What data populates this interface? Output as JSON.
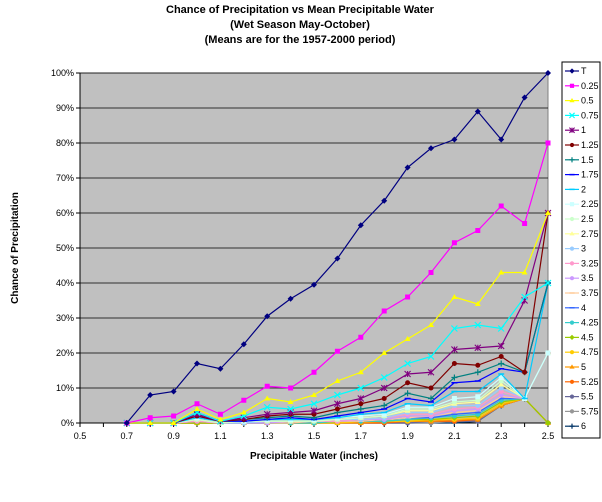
{
  "chart_data": {
    "type": "line",
    "title_lines": [
      "Chance of Precipitation vs Mean Precipitable Water",
      "(Wet Season May-October)",
      "(Means are for the 1957-2000 period)"
    ],
    "xlabel": "Precipitable Water (inches)",
    "ylabel": "Chance of Precipitation",
    "xlim": [
      0.5,
      2.5
    ],
    "ylim": [
      0,
      100
    ],
    "x_ticks": [
      "0.5",
      "0.7",
      "0.9",
      "1.1",
      "1.3",
      "1.5",
      "1.7",
      "1.9",
      "2.1",
      "2.3",
      "2.5"
    ],
    "y_ticks": [
      "0%",
      "10%",
      "20%",
      "30%",
      "40%",
      "50%",
      "60%",
      "70%",
      "80%",
      "90%",
      "100%"
    ],
    "grid": "horizontal",
    "plot_background": "#c0c0c0",
    "legend_position": "right",
    "x": [
      0.7,
      0.8,
      0.9,
      1.0,
      1.1,
      1.2,
      1.3,
      1.4,
      1.5,
      1.6,
      1.7,
      1.8,
      1.9,
      2.0,
      2.1,
      2.2,
      2.3,
      2.4,
      2.5
    ],
    "series": [
      {
        "name": "T",
        "color": "#000080",
        "marker": "diamond",
        "values": [
          0,
          8,
          9,
          17,
          15.5,
          22.5,
          30.5,
          35.5,
          39.5,
          47,
          56.5,
          63.5,
          73,
          78.5,
          81,
          89,
          81,
          93,
          100
        ]
      },
      {
        "name": "0.25",
        "color": "#ff00ff",
        "marker": "square",
        "values": [
          0,
          1.5,
          2,
          5.5,
          2.5,
          6.5,
          10.5,
          10,
          14.5,
          20.5,
          24.5,
          32,
          36,
          43,
          51.5,
          55,
          62,
          57,
          80
        ]
      },
      {
        "name": "0.5",
        "color": "#ffff00",
        "marker": "triangle",
        "values": [
          0,
          0,
          0,
          4,
          1,
          3,
          7,
          6,
          8,
          12,
          14.5,
          20,
          24,
          28,
          36,
          34,
          43,
          43,
          60
        ]
      },
      {
        "name": "0.75",
        "color": "#00ffff",
        "marker": "x",
        "values": [
          0,
          0,
          0,
          3,
          0.5,
          2,
          4.5,
          4,
          5.5,
          8,
          10,
          13,
          17,
          19,
          27,
          28,
          27,
          36,
          40
        ]
      },
      {
        "name": "1",
        "color": "#800080",
        "marker": "star",
        "values": [
          0,
          0,
          0,
          2.5,
          0.5,
          1.5,
          2.5,
          3,
          3.5,
          5.5,
          7,
          10,
          14,
          14.5,
          21,
          21.5,
          22,
          35,
          60
        ]
      },
      {
        "name": "1.25",
        "color": "#800000",
        "marker": "circle",
        "values": [
          0,
          0,
          0,
          2,
          0.5,
          1,
          2,
          2.5,
          2.5,
          4,
          5.5,
          7,
          11.5,
          10,
          17,
          16.5,
          19,
          14.5,
          60
        ]
      },
      {
        "name": "1.5",
        "color": "#008080",
        "marker": "plus",
        "values": [
          0,
          0,
          0,
          3,
          0.5,
          1,
          1.5,
          2,
          1.5,
          3,
          4,
          5,
          8.5,
          7,
          13,
          14.5,
          17,
          14.5,
          40
        ]
      },
      {
        "name": "1.75",
        "color": "#0000ff",
        "marker": "dash",
        "values": [
          0,
          0,
          0,
          2,
          0.5,
          0.5,
          1,
          1.5,
          1,
          2,
          3,
          4,
          7,
          6,
          11.5,
          12,
          15.5,
          14.5,
          40
        ]
      },
      {
        "name": "2",
        "color": "#00ccff",
        "marker": "dash",
        "values": [
          0,
          0,
          0,
          1.5,
          0.5,
          0.5,
          1,
          1,
          1,
          1.5,
          2.5,
          3,
          5.5,
          5,
          9,
          9,
          14,
          7,
          40
        ]
      },
      {
        "name": "2.25",
        "color": "#ccffff",
        "marker": "square",
        "values": [
          0,
          0,
          0,
          1.5,
          0.5,
          0.5,
          1,
          1,
          1,
          1.5,
          2,
          2.5,
          4.5,
          4.5,
          7,
          7.5,
          13,
          7,
          20
        ]
      },
      {
        "name": "2.5",
        "color": "#ccffcc",
        "marker": "circle",
        "values": [
          0,
          0,
          0,
          1,
          0,
          0.5,
          0.5,
          0.5,
          0.5,
          1,
          1.5,
          2,
          4,
          4,
          6,
          6.5,
          12,
          7,
          20
        ]
      },
      {
        "name": "2.75",
        "color": "#ffff99",
        "marker": "triangle",
        "values": [
          0,
          0,
          0,
          1,
          0,
          0.5,
          0.5,
          0.5,
          0.5,
          1,
          1.5,
          2,
          3.5,
          3.5,
          5.5,
          6,
          11,
          7,
          20
        ]
      },
      {
        "name": "3",
        "color": "#99ccff",
        "marker": "circle",
        "values": [
          0,
          0,
          0,
          1,
          0,
          0,
          0.5,
          0.5,
          0.5,
          1,
          1,
          1.5,
          3,
          3,
          5,
          5,
          10,
          7,
          20
        ]
      },
      {
        "name": "3.25",
        "color": "#ff99cc",
        "marker": "circle",
        "values": [
          0,
          0,
          0,
          0.5,
          0,
          0,
          0.5,
          0.5,
          0.5,
          0.5,
          1,
          1.5,
          2.5,
          2.5,
          4,
          4.5,
          9,
          7,
          20
        ]
      },
      {
        "name": "3.5",
        "color": "#cc99ff",
        "marker": "circle",
        "values": [
          0,
          0,
          0,
          0.5,
          0,
          0,
          0,
          0.5,
          0.5,
          0.5,
          1,
          1,
          2,
          2,
          3.5,
          4,
          8,
          7,
          20
        ]
      },
      {
        "name": "3.75",
        "color": "#ffcc99",
        "marker": "dash",
        "values": [
          0,
          0,
          0,
          0.5,
          0,
          0,
          0,
          0,
          0.5,
          0.5,
          0.5,
          1,
          1.5,
          2,
          3,
          3.5,
          7.5,
          7,
          20
        ]
      },
      {
        "name": "4",
        "color": "#3366ff",
        "marker": "dash",
        "values": [
          0,
          0,
          0,
          0.5,
          0,
          0,
          0,
          0,
          0.5,
          0.5,
          0.5,
          1,
          1.5,
          1.5,
          2.5,
          3,
          7,
          7,
          20
        ]
      },
      {
        "name": "4.25",
        "color": "#33cccc",
        "marker": "circle",
        "values": [
          0,
          0,
          0,
          0.5,
          0,
          0,
          0,
          0,
          0,
          0.5,
          0.5,
          0.5,
          1,
          1.5,
          2,
          2.5,
          6.5,
          7,
          20
        ]
      },
      {
        "name": "4.5",
        "color": "#99cc00",
        "marker": "diamond",
        "values": [
          0,
          0,
          0,
          0,
          0,
          0,
          0,
          0,
          0,
          0.5,
          0.5,
          0.5,
          1,
          1,
          1.5,
          2,
          6,
          7,
          0
        ]
      },
      {
        "name": "4.75",
        "color": "#ffcc00",
        "marker": "circle",
        "values": [
          0,
          0,
          0,
          0,
          0,
          0,
          0,
          0,
          0,
          0,
          0.5,
          0.5,
          0.5,
          1,
          1,
          1.5,
          5.5,
          7,
          0
        ]
      },
      {
        "name": "5",
        "color": "#ff9900",
        "marker": "triangle",
        "values": [
          0,
          0,
          0,
          0,
          0,
          0,
          0,
          0,
          0,
          0,
          0,
          0.5,
          0.5,
          0.5,
          1,
          1,
          5,
          7,
          0
        ]
      },
      {
        "name": "5.25",
        "color": "#ff6600",
        "marker": "circle",
        "values": [
          0,
          0,
          0,
          0,
          0,
          0,
          0,
          0,
          0,
          0,
          0,
          0,
          0.5,
          0.5,
          0.5,
          1,
          5,
          7,
          0
        ]
      },
      {
        "name": "5.5",
        "color": "#666699",
        "marker": "circle",
        "values": [
          0,
          0,
          0,
          0,
          0,
          0,
          0,
          0,
          0,
          0,
          0,
          0,
          0,
          0.5,
          0.5,
          0.5,
          5,
          7,
          0
        ]
      },
      {
        "name": "5.75",
        "color": "#969696",
        "marker": "circle",
        "values": [
          0,
          0,
          0,
          0,
          0,
          0,
          0,
          0,
          0,
          0,
          0,
          0,
          0,
          0,
          0.5,
          0.5,
          5,
          7,
          0
        ]
      },
      {
        "name": "6",
        "color": "#003366",
        "marker": "plus",
        "values": [
          0,
          0,
          0,
          0,
          0,
          0,
          0,
          0,
          0,
          0,
          0,
          0,
          0,
          0,
          0,
          0.5,
          5,
          7,
          0
        ]
      }
    ]
  }
}
